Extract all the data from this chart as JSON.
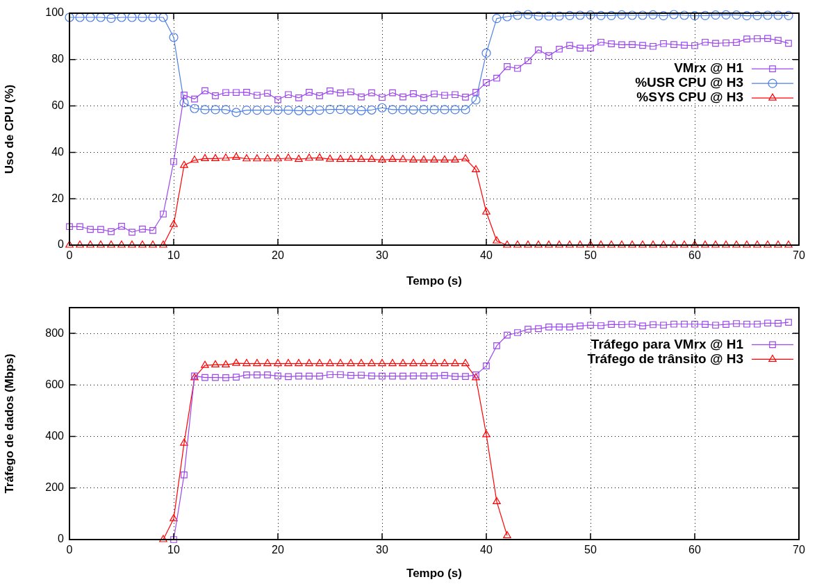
{
  "chart_data": [
    {
      "type": "line",
      "xlabel": "Tempo (s)",
      "ylabel": "Uso de CPU (%)",
      "xlim": [
        0,
        70
      ],
      "xticks": [
        0,
        10,
        20,
        30,
        40,
        50,
        60,
        70
      ],
      "ylim": [
        0,
        100
      ],
      "yticks": [
        0,
        20,
        40,
        60,
        80,
        100
      ],
      "grid": true,
      "legend": "top right",
      "line_style": "solid",
      "x": [
        0,
        1,
        2,
        3,
        4,
        5,
        6,
        7,
        8,
        9,
        10,
        11,
        12,
        13,
        14,
        15,
        16,
        17,
        18,
        19,
        20,
        21,
        22,
        23,
        24,
        25,
        26,
        27,
        28,
        29,
        30,
        31,
        32,
        33,
        34,
        35,
        36,
        37,
        38,
        39,
        40,
        41,
        42,
        43,
        44,
        45,
        46,
        47,
        48,
        49,
        50,
        51,
        52,
        53,
        54,
        55,
        56,
        57,
        58,
        59,
        60,
        61,
        62,
        63,
        64,
        65,
        66,
        67,
        68,
        69
      ],
      "series": [
        {
          "name": "VMrx @ H1",
          "color": "#9b45ee",
          "marker": "square",
          "values": [
            8.0,
            8.0,
            6.8,
            6.8,
            5.8,
            8.1,
            5.6,
            6.9,
            6.3,
            13.4,
            36,
            64.7,
            63,
            66.6,
            64.4,
            65.8,
            65.8,
            65.9,
            64.6,
            65.5,
            62.7,
            64.9,
            63.5,
            65.9,
            64.4,
            66.5,
            65.6,
            66.1,
            63.9,
            65.7,
            63.7,
            65.7,
            63.9,
            65.3,
            63.6,
            65.2,
            64.6,
            64.9,
            63.8,
            65.9,
            70.1,
            72,
            77,
            76.2,
            79.5,
            84.2,
            81.7,
            84.5,
            86.1,
            84.9,
            85,
            87.5,
            86.8,
            86.4,
            86.5,
            86.1,
            85.7,
            86.9,
            86.5,
            86.2,
            86,
            87.5,
            87,
            87.2,
            87.4,
            88.9,
            89,
            89.1,
            88.3,
            87
          ]
        },
        {
          "name": "%USR CPU @ H3",
          "color": "#4d7fe6",
          "marker": "circle",
          "values": [
            98.2,
            98.2,
            98.2,
            98.2,
            97.8,
            98.2,
            98.2,
            98.2,
            98.2,
            98.2,
            89.6,
            61.4,
            58.9,
            58.4,
            58.4,
            58.4,
            57.2,
            58.2,
            58.2,
            58.2,
            58.2,
            58.2,
            58,
            58,
            58.2,
            58.5,
            58.5,
            58.3,
            58,
            58.3,
            59.2,
            58.4,
            58.4,
            58.3,
            58.4,
            58.4,
            58.4,
            58.4,
            58.4,
            62.6,
            82.8,
            97.7,
            98.5,
            99.1,
            99.4,
            98.8,
            98.8,
            98.8,
            99,
            99.1,
            99.2,
            99,
            99,
            99.3,
            99.1,
            99.1,
            99.3,
            98.9,
            99.4,
            99.1,
            98.9,
            99,
            99.2,
            99.3,
            99.2,
            98.9,
            99,
            99.1,
            99.1,
            99
          ]
        },
        {
          "name": "%SYS CPU @ H3",
          "color": "#ff0000",
          "marker": "triangle",
          "values": [
            0,
            0,
            0,
            0,
            0,
            0,
            0,
            0,
            0,
            0,
            8.9,
            34.4,
            36.6,
            37.3,
            37.3,
            37.5,
            37.9,
            37.2,
            37.2,
            37.2,
            37.2,
            37.5,
            37,
            37.5,
            37.6,
            37.1,
            37,
            37,
            37,
            37,
            36.7,
            37,
            36.9,
            36.7,
            36.7,
            36.7,
            36.7,
            36.7,
            37.2,
            32.5,
            14.3,
            1.8,
            0,
            0,
            0,
            0,
            0,
            0,
            0,
            0,
            0,
            0,
            0,
            0,
            0,
            0,
            0,
            0,
            0,
            0,
            0,
            0,
            0,
            0,
            0,
            0,
            0,
            0,
            0,
            0
          ]
        }
      ]
    },
    {
      "type": "line",
      "xlabel": "Tempo (s)",
      "ylabel": "Tráfego de dados (Mbps)",
      "xlim": [
        0,
        70
      ],
      "xticks": [
        0,
        10,
        20,
        30,
        40,
        50,
        60,
        70
      ],
      "ylim": [
        0,
        900
      ],
      "yticks": [
        0,
        200,
        400,
        600,
        800
      ],
      "grid": true,
      "legend": "top right",
      "line_style": "solid",
      "series": [
        {
          "name": "Tráfego para VMrx @ H1",
          "color": "#9b45ee",
          "marker": "square",
          "x": [
            10,
            11,
            12,
            13,
            14,
            15,
            16,
            17,
            18,
            19,
            20,
            21,
            22,
            23,
            24,
            25,
            26,
            27,
            28,
            29,
            30,
            31,
            32,
            33,
            34,
            35,
            36,
            37,
            38,
            39,
            40,
            41,
            42,
            43,
            44,
            45,
            46,
            47,
            48,
            49,
            50,
            51,
            52,
            53,
            54,
            55,
            56,
            57,
            58,
            59,
            60,
            61,
            62,
            63,
            64,
            65,
            66,
            67,
            68,
            69
          ],
          "values": [
            0,
            251,
            635,
            629,
            629,
            628,
            630,
            639,
            639,
            639,
            635,
            632,
            634,
            634,
            634,
            640,
            640,
            637,
            638,
            635,
            634,
            634,
            634,
            635,
            635,
            635,
            637,
            633,
            633,
            639,
            674,
            752,
            793,
            803,
            816,
            818,
            825,
            825,
            825,
            829,
            832,
            830,
            835,
            834,
            836,
            829,
            834,
            832,
            836,
            836,
            836,
            835,
            832,
            835,
            838,
            836,
            836,
            840,
            839,
            843
          ]
        },
        {
          "name": "Tráfego de trânsito @ H3",
          "color": "#ff0000",
          "marker": "triangle",
          "x": [
            9,
            10,
            11,
            12,
            13,
            14,
            15,
            16,
            17,
            18,
            19,
            20,
            21,
            22,
            23,
            24,
            25,
            26,
            27,
            28,
            29,
            30,
            31,
            32,
            33,
            34,
            35,
            36,
            37,
            38,
            39,
            40,
            41,
            42
          ],
          "values": [
            0,
            81,
            374,
            628,
            676,
            678,
            678,
            684,
            683,
            683,
            683,
            683,
            683,
            683,
            683,
            683,
            683,
            683,
            683,
            683,
            683,
            683,
            683,
            683,
            683,
            683,
            683,
            683,
            683,
            683,
            628,
            407,
            147,
            15
          ]
        }
      ]
    }
  ]
}
